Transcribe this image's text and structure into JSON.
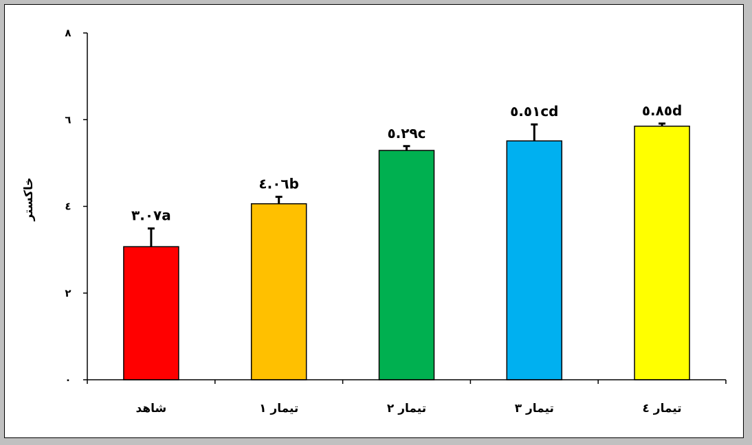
{
  "chart_data": {
    "type": "bar",
    "title": "",
    "xlabel": "",
    "ylabel": "خاکستر",
    "ylim": [
      0,
      8
    ],
    "yticks": [
      0,
      2,
      4,
      6,
      8
    ],
    "ytick_labels": [
      "٠",
      "٢",
      "٤",
      "٦",
      "٨"
    ],
    "grid": false,
    "legend": "none",
    "categories": [
      "شاهد",
      "تیمار ۱",
      "تیمار ۲",
      "تیمار ۳",
      "تیمار ٤"
    ],
    "values": [
      3.07,
      4.06,
      5.29,
      5.51,
      5.85
    ],
    "error_upper": [
      0.42,
      0.16,
      0.1,
      0.38,
      0.06
    ],
    "data_labels": [
      "٣.٠٧a",
      "٤.٠٦b",
      "٥.٢٩c",
      "٥.٥١cd",
      "٥.٨٥d"
    ],
    "colors": [
      "#ff0000",
      "#ffc000",
      "#00b050",
      "#00b0f0",
      "#ffff00"
    ]
  }
}
